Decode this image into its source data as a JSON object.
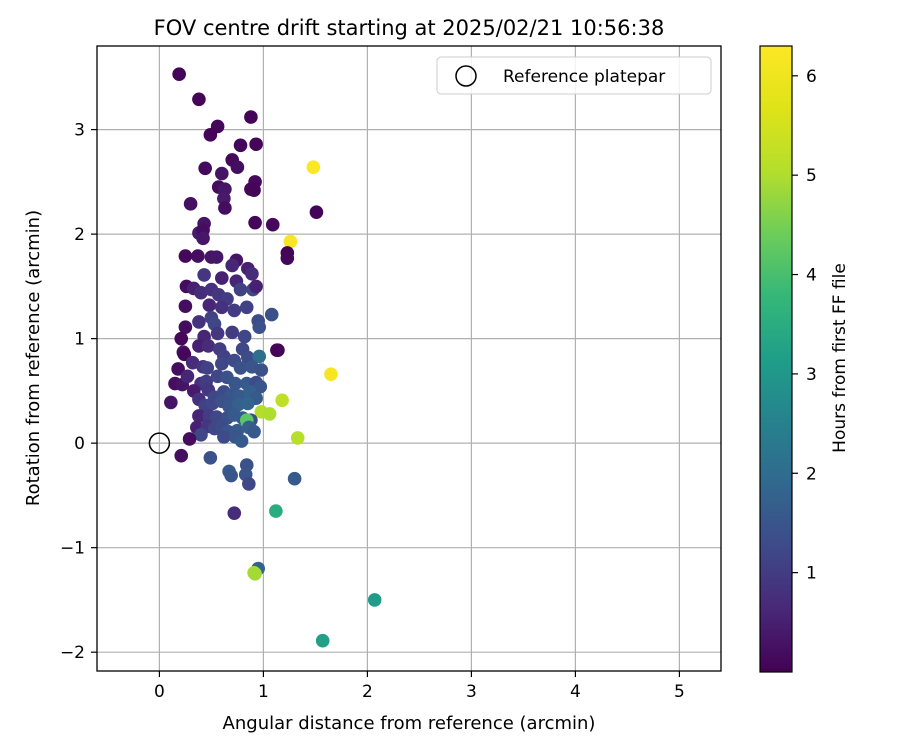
{
  "chart_data": {
    "type": "scatter",
    "title": "FOV centre drift starting at 2025/02/21 10:56:38",
    "xlabel": "Angular distance from reference (arcmin)",
    "ylabel": "Rotation from reference (arcmin)",
    "xlim": [
      -0.6,
      5.4
    ],
    "ylim": [
      -2.18,
      3.8
    ],
    "xticks": [
      0,
      1,
      2,
      3,
      4,
      5
    ],
    "yticks": [
      -2,
      -1,
      0,
      1,
      2,
      3
    ],
    "grid": true,
    "legend": {
      "placement": "top-right",
      "entries": [
        "Reference platepar"
      ]
    },
    "reference_point": {
      "x": 0,
      "y": 0
    },
    "colorbar": {
      "label": "Hours from first FF file",
      "colormap": "viridis",
      "range": [
        0,
        6.3
      ],
      "ticks": [
        1,
        2,
        3,
        4,
        5,
        6
      ]
    },
    "points": [
      [
        0.19,
        3.53,
        0.05
      ],
      [
        0.38,
        3.29,
        0.08
      ],
      [
        0.56,
        3.03,
        0.1
      ],
      [
        0.88,
        3.12,
        0.05
      ],
      [
        0.49,
        2.95,
        0.07
      ],
      [
        0.93,
        2.86,
        0.06
      ],
      [
        0.78,
        2.85,
        0.1
      ],
      [
        0.7,
        2.71,
        0.12
      ],
      [
        0.44,
        2.63,
        0.15
      ],
      [
        0.6,
        2.58,
        0.3
      ],
      [
        0.75,
        2.64,
        0.2
      ],
      [
        0.57,
        2.45,
        0.18
      ],
      [
        0.63,
        2.43,
        0.35
      ],
      [
        0.88,
        2.43,
        0.1
      ],
      [
        0.92,
        2.5,
        0.12
      ],
      [
        0.91,
        2.42,
        0.08
      ],
      [
        0.62,
        2.34,
        0.4
      ],
      [
        0.3,
        2.29,
        0.25
      ],
      [
        0.63,
        2.25,
        0.2
      ],
      [
        0.43,
        2.1,
        0.3
      ],
      [
        0.92,
        2.11,
        0.1
      ],
      [
        1.09,
        2.09,
        0.12
      ],
      [
        0.38,
        2.01,
        0.4
      ],
      [
        0.42,
        2.04,
        0.2
      ],
      [
        0.42,
        1.96,
        0.35
      ],
      [
        0.74,
        1.75,
        0.3
      ],
      [
        1.51,
        2.21,
        0.05
      ],
      [
        1.48,
        2.64,
        6.25
      ],
      [
        1.26,
        1.93,
        6.2
      ],
      [
        1.23,
        1.82,
        0.06
      ],
      [
        1.23,
        1.77,
        0.1
      ],
      [
        0.25,
        1.79,
        0.1
      ],
      [
        0.37,
        1.79,
        0.2
      ],
      [
        0.5,
        1.78,
        0.3
      ],
      [
        0.55,
        1.78,
        0.35
      ],
      [
        0.7,
        1.7,
        0.6
      ],
      [
        0.85,
        1.67,
        0.5
      ],
      [
        0.89,
        1.62,
        0.7
      ],
      [
        0.43,
        1.61,
        0.9
      ],
      [
        0.6,
        1.58,
        0.5
      ],
      [
        0.74,
        1.55,
        0.6
      ],
      [
        0.26,
        1.5,
        0.2
      ],
      [
        0.33,
        1.48,
        0.5
      ],
      [
        0.4,
        1.44,
        0.7
      ],
      [
        0.5,
        1.47,
        0.8
      ],
      [
        0.57,
        1.42,
        0.9
      ],
      [
        0.65,
        1.38,
        1.0
      ],
      [
        0.78,
        1.47,
        1.1
      ],
      [
        0.9,
        1.47,
        1.2
      ],
      [
        0.93,
        1.5,
        0.5
      ],
      [
        0.25,
        1.31,
        0.2
      ],
      [
        0.48,
        1.32,
        0.6
      ],
      [
        0.6,
        1.3,
        0.8
      ],
      [
        0.72,
        1.27,
        1.0
      ],
      [
        0.84,
        1.3,
        1.1
      ],
      [
        0.38,
        1.16,
        0.8
      ],
      [
        0.5,
        1.2,
        1.1
      ],
      [
        0.53,
        1.14,
        1.2
      ],
      [
        0.95,
        1.17,
        1.3
      ],
      [
        0.96,
        1.11,
        1.4
      ],
      [
        1.08,
        1.23,
        1.4
      ],
      [
        0.25,
        1.11,
        0.2
      ],
      [
        0.43,
        1.02,
        0.6
      ],
      [
        0.56,
        1.05,
        0.9
      ],
      [
        0.7,
        1.06,
        1.0
      ],
      [
        0.82,
        1.02,
        1.2
      ],
      [
        0.21,
        1.0,
        0.1
      ],
      [
        0.38,
        0.93,
        0.5
      ],
      [
        0.47,
        0.93,
        0.7
      ],
      [
        0.58,
        0.9,
        1.0
      ],
      [
        0.62,
        0.83,
        1.1
      ],
      [
        0.8,
        0.9,
        1.2
      ],
      [
        0.85,
        0.82,
        1.3
      ],
      [
        0.96,
        0.83,
        2.05
      ],
      [
        0.23,
        0.87,
        0.3
      ],
      [
        0.24,
        0.85,
        0.1
      ],
      [
        1.13,
        0.89,
        0.05
      ],
      [
        1.14,
        0.89,
        0.08
      ],
      [
        1.65,
        0.66,
        6.15
      ],
      [
        0.18,
        0.71,
        0.2
      ],
      [
        0.32,
        0.77,
        0.7
      ],
      [
        0.42,
        0.73,
        0.9
      ],
      [
        0.46,
        0.72,
        1.1
      ],
      [
        0.6,
        0.76,
        1.2
      ],
      [
        0.72,
        0.79,
        1.3
      ],
      [
        0.78,
        0.72,
        1.4
      ],
      [
        0.89,
        0.73,
        1.5
      ],
      [
        0.98,
        0.7,
        1.4
      ],
      [
        0.15,
        0.57,
        0.2
      ],
      [
        0.22,
        0.56,
        0.3
      ],
      [
        0.27,
        0.64,
        0.6
      ],
      [
        0.4,
        0.57,
        0.8
      ],
      [
        0.45,
        0.59,
        1.0
      ],
      [
        0.56,
        0.64,
        1.2
      ],
      [
        0.65,
        0.63,
        1.4
      ],
      [
        0.73,
        0.57,
        1.5
      ],
      [
        0.84,
        0.57,
        1.6
      ],
      [
        0.93,
        0.58,
        1.3
      ],
      [
        0.97,
        0.54,
        1.5
      ],
      [
        0.33,
        0.5,
        0.4
      ],
      [
        0.47,
        0.51,
        0.9
      ],
      [
        0.53,
        0.44,
        1.2
      ],
      [
        0.62,
        0.49,
        1.3
      ],
      [
        0.69,
        0.46,
        1.5
      ],
      [
        0.77,
        0.45,
        1.6
      ],
      [
        0.87,
        0.49,
        1.7
      ],
      [
        0.93,
        0.43,
        1.6
      ],
      [
        0.11,
        0.39,
        0.3
      ],
      [
        0.38,
        0.42,
        0.8
      ],
      [
        0.44,
        0.36,
        1.1
      ],
      [
        0.51,
        0.38,
        1.2
      ],
      [
        0.6,
        0.4,
        1.4
      ],
      [
        0.67,
        0.35,
        1.5
      ],
      [
        0.76,
        0.37,
        1.7
      ],
      [
        0.85,
        0.38,
        1.8
      ],
      [
        1.18,
        0.41,
        5.2
      ],
      [
        0.98,
        0.3,
        5.05
      ],
      [
        1.06,
        0.28,
        5.0
      ],
      [
        0.38,
        0.26,
        0.6
      ],
      [
        0.48,
        0.26,
        1.0
      ],
      [
        0.55,
        0.25,
        1.2
      ],
      [
        0.65,
        0.24,
        1.4
      ],
      [
        0.72,
        0.27,
        1.6
      ],
      [
        0.8,
        0.24,
        1.6
      ],
      [
        0.88,
        0.22,
        1.3
      ],
      [
        0.84,
        0.22,
        4.2
      ],
      [
        0.36,
        0.15,
        0.5
      ],
      [
        0.46,
        0.16,
        0.9
      ],
      [
        0.53,
        0.14,
        1.2
      ],
      [
        0.6,
        0.16,
        1.3
      ],
      [
        0.66,
        0.11,
        1.5
      ],
      [
        0.75,
        0.12,
        1.6
      ],
      [
        0.86,
        0.15,
        1.7
      ],
      [
        0.91,
        0.11,
        1.6
      ],
      [
        0.4,
        0.08,
        1.2
      ],
      [
        0.29,
        0.04,
        0.2
      ],
      [
        0.62,
        0.06,
        1.3
      ],
      [
        0.73,
        0.06,
        1.5
      ],
      [
        0.79,
        0.02,
        1.6
      ],
      [
        1.33,
        0.05,
        5.1
      ],
      [
        0.21,
        -0.12,
        0.2
      ],
      [
        0.49,
        -0.14,
        1.4
      ],
      [
        0.67,
        -0.27,
        1.6
      ],
      [
        0.69,
        -0.31,
        1.5
      ],
      [
        0.84,
        -0.21,
        1.4
      ],
      [
        0.83,
        -0.3,
        1.5
      ],
      [
        0.86,
        -0.39,
        1.2
      ],
      [
        1.3,
        -0.34,
        1.6
      ],
      [
        0.72,
        -0.67,
        0.7
      ],
      [
        1.12,
        -0.65,
        3.5
      ],
      [
        0.95,
        -1.2,
        1.8
      ],
      [
        0.91,
        -1.24,
        5.0
      ],
      [
        0.92,
        -1.25,
        4.9
      ],
      [
        2.07,
        -1.5,
        3.1
      ],
      [
        1.57,
        -1.89,
        3.2
      ]
    ]
  }
}
